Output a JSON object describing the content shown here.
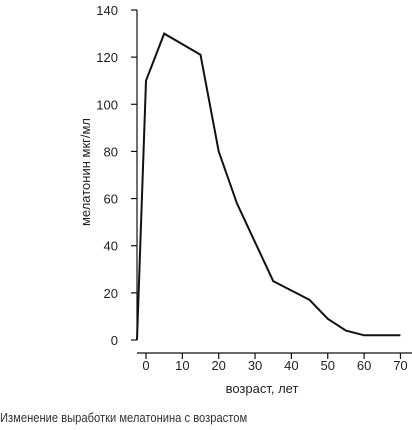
{
  "chart_data": {
    "type": "line",
    "xlabel": "возраст, лет",
    "ylabel": "мелатонин мкг/мл",
    "xlim": [
      -3,
      73
    ],
    "ylim": [
      0,
      140
    ],
    "x_ticks": [
      0,
      10,
      20,
      30,
      40,
      50,
      60,
      70
    ],
    "y_ticks": [
      0,
      20,
      40,
      60,
      80,
      100,
      120,
      140
    ],
    "grid": false,
    "series": [
      {
        "color": "#111111",
        "x": [
          -3,
          0,
          5,
          15,
          20,
          25,
          35,
          45,
          50,
          55,
          60,
          65,
          70
        ],
        "y": [
          0,
          110,
          130,
          121,
          80,
          58,
          25,
          17,
          9,
          4,
          2,
          2,
          2
        ]
      }
    ]
  },
  "caption": "Изменение выработки мелатонина с возрастом"
}
